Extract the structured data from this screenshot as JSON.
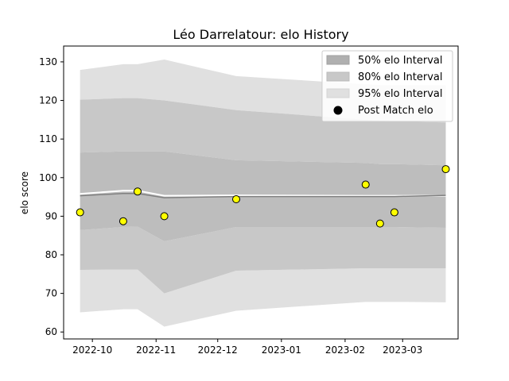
{
  "chart_data": {
    "type": "line",
    "title": "Léo Darrelatour: elo History",
    "xlabel": "",
    "ylabel": "elo score",
    "xlim": [
      "2022-09-17",
      "2023-03-28"
    ],
    "ylim": [
      58.2,
      134.1
    ],
    "x_ticks": [
      "2022-10-01",
      "2022-11-01",
      "2022-12-01",
      "2023-01-01",
      "2023-02-01",
      "2023-03-01"
    ],
    "x_tick_labels": [
      "2022-10",
      "2022-11",
      "2022-12",
      "2023-01",
      "2023-02",
      "2023-03"
    ],
    "y_ticks": [
      60,
      70,
      80,
      90,
      100,
      110,
      120,
      130
    ],
    "grid": false,
    "legend_position": "top-right",
    "dates": [
      "2022-09-25",
      "2022-10-16",
      "2022-10-23",
      "2022-11-05",
      "2022-12-10",
      "2023-02-11",
      "2023-02-18",
      "2023-02-25",
      "2023-03-22"
    ],
    "series": [
      {
        "name": "50% elo Interval",
        "color": "#b0b0b0",
        "lower": [
          86.4,
          87.2,
          87.3,
          83.5,
          87.2,
          87.2,
          87.2,
          87.2,
          87.0
        ],
        "upper": [
          106.5,
          106.8,
          106.8,
          106.8,
          104.5,
          103.8,
          103.5,
          103.5,
          103.2
        ]
      },
      {
        "name": "80% elo Interval",
        "color": "#c8c8c8",
        "lower": [
          76.1,
          76.2,
          76.2,
          70.0,
          75.9,
          76.5,
          76.5,
          76.5,
          76.5
        ],
        "upper": [
          120.2,
          120.6,
          120.6,
          120.0,
          117.5,
          115.0,
          114.8,
          114.6,
          114.3
        ]
      },
      {
        "name": "95% elo Interval",
        "color": "#e0e0e0",
        "lower": [
          65.1,
          65.9,
          65.9,
          61.4,
          65.5,
          67.8,
          67.8,
          67.8,
          67.7
        ],
        "upper": [
          127.9,
          129.4,
          129.4,
          130.6,
          126.3,
          124.2,
          124.0,
          124.0,
          124.0
        ]
      },
      {
        "name": "",
        "color": "#808080",
        "values": [
          95.3,
          95.9,
          95.9,
          94.8,
          95.1,
          95.1,
          95.1,
          95.1,
          95.4
        ]
      },
      {
        "name": "",
        "color": "#ffffff",
        "values": [
          95.8,
          96.6,
          96.6,
          95.3,
          95.4,
          95.3,
          95.3,
          95.3,
          95.3
        ]
      },
      {
        "name": "Post Match elo",
        "color": "#ffff00",
        "values": [
          91.0,
          88.7,
          96.4,
          90.0,
          94.4,
          98.2,
          88.1,
          91.0,
          102.2
        ]
      }
    ]
  }
}
